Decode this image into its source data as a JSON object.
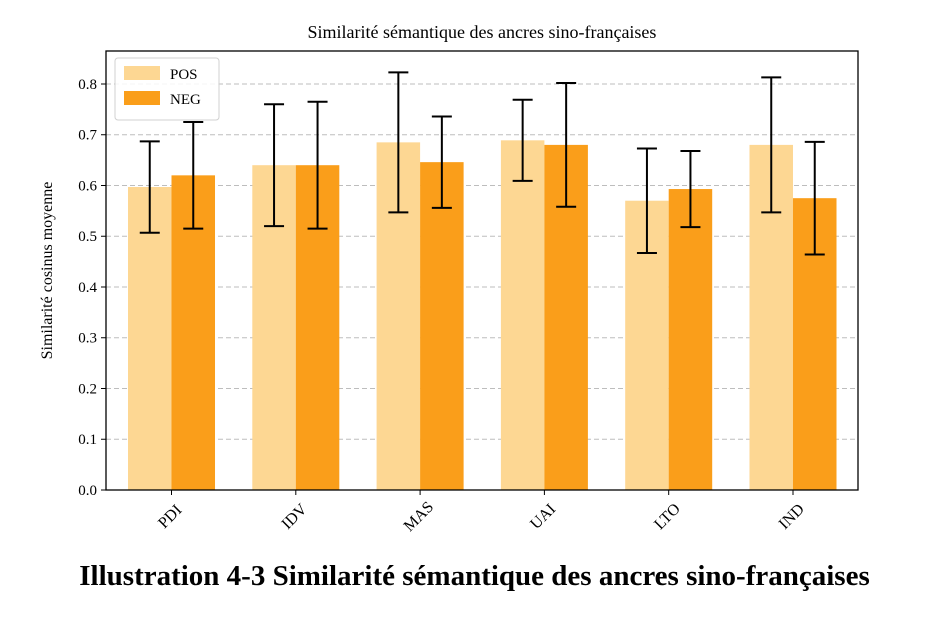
{
  "chart_data": {
    "type": "bar",
    "title": "Similarité sémantique des ancres sino-françaises",
    "xlabel": "",
    "ylabel": "Similarité cosinus moyenne",
    "categories": [
      "PDI",
      "IDV",
      "MAS",
      "UAI",
      "LTO",
      "IND"
    ],
    "series": [
      {
        "name": "POS",
        "color": "#fdd793",
        "values": [
          0.597,
          0.64,
          0.685,
          0.689,
          0.57,
          0.68
        ],
        "errors": [
          0.09,
          0.12,
          0.138,
          0.08,
          0.103,
          0.133
        ]
      },
      {
        "name": "NEG",
        "color": "#fa9e1a",
        "values": [
          0.62,
          0.64,
          0.646,
          0.68,
          0.593,
          0.575
        ],
        "errors": [
          0.105,
          0.125,
          0.09,
          0.122,
          0.075,
          0.111
        ]
      }
    ],
    "ylim": [
      0,
      0.865
    ],
    "yticks": [
      "0.0",
      "0.1",
      "0.2",
      "0.3",
      "0.4",
      "0.5",
      "0.6",
      "0.7",
      "0.8"
    ],
    "grid": "horizontal-dashed",
    "legend": "top-left"
  },
  "caption": "Illustration 4-3 Similarité sémantique des ancres sino-françaises"
}
